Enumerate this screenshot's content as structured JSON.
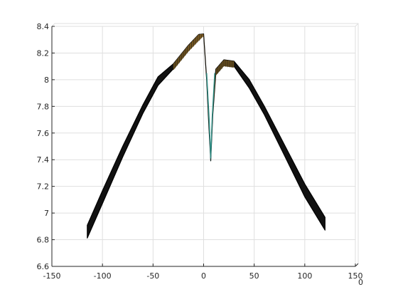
{
  "chart_data": {
    "type": "surface",
    "title": "",
    "xlabel": "",
    "ylabel": "",
    "xlim": [
      -150,
      150
    ],
    "ylim": [
      6.6,
      8.4
    ],
    "grid": true,
    "x_ticks": [
      -150,
      -100,
      -50,
      0,
      50,
      100,
      150
    ],
    "x_tick_labels": [
      "-150",
      "-100",
      "-50",
      "0",
      "50",
      "100",
      "150"
    ],
    "y_ticks": [
      6.6,
      6.8,
      7.0,
      7.2,
      7.4,
      7.6,
      7.8,
      8.0,
      8.2,
      8.4
    ],
    "y_tick_labels": [
      "6.6",
      "6.8",
      "7",
      "7.2",
      "7.4",
      "7.6",
      "7.8",
      "8",
      "8.2",
      "8.4"
    ],
    "depth_tick_labels": [
      "0"
    ],
    "surface_profile": {
      "x": [
        -115,
        -100,
        -80,
        -60,
        -45,
        -30,
        -15,
        -5,
        0,
        3,
        5,
        7,
        9,
        12,
        20,
        30,
        45,
        60,
        80,
        100,
        120
      ],
      "y": [
        6.86,
        7.12,
        7.46,
        7.78,
        7.99,
        8.1,
        8.24,
        8.32,
        8.34,
        8.0,
        7.7,
        7.41,
        7.75,
        8.06,
        8.13,
        8.12,
        7.97,
        7.77,
        7.47,
        7.17,
        6.92
      ]
    },
    "colors": {
      "surface_edge": "#000000",
      "surface_fill_high": "#7a5a22",
      "surface_fill_dip": "#2f8f86",
      "grid": "#dfdfdf",
      "axis": "#262626"
    }
  }
}
